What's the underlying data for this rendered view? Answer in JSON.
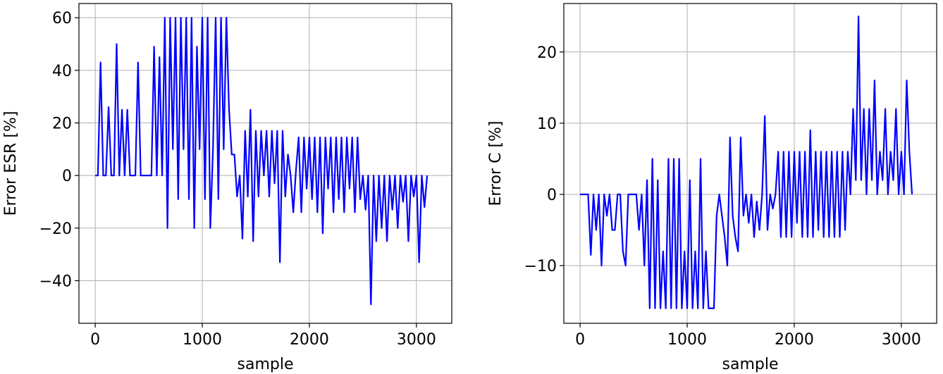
{
  "chart_data": [
    {
      "type": "line",
      "xlabel": "sample",
      "ylabel": "Error ESR [%]",
      "x": [
        0,
        25,
        50,
        75,
        100,
        125,
        150,
        175,
        200,
        225,
        250,
        275,
        300,
        325,
        350,
        375,
        400,
        425,
        450,
        475,
        500,
        525,
        550,
        575,
        600,
        625,
        650,
        675,
        700,
        725,
        750,
        775,
        800,
        825,
        850,
        875,
        900,
        925,
        950,
        975,
        1000,
        1025,
        1050,
        1075,
        1100,
        1125,
        1150,
        1175,
        1200,
        1225,
        1250,
        1275,
        1300,
        1325,
        1350,
        1375,
        1400,
        1425,
        1450,
        1475,
        1500,
        1525,
        1550,
        1575,
        1600,
        1625,
        1650,
        1675,
        1700,
        1725,
        1750,
        1775,
        1800,
        1825,
        1850,
        1875,
        1900,
        1925,
        1950,
        1975,
        2000,
        2025,
        2050,
        2075,
        2100,
        2125,
        2150,
        2175,
        2200,
        2225,
        2250,
        2275,
        2300,
        2325,
        2350,
        2375,
        2400,
        2425,
        2450,
        2475,
        2500,
        2525,
        2550,
        2575,
        2600,
        2625,
        2650,
        2675,
        2700,
        2725,
        2750,
        2775,
        2800,
        2825,
        2850,
        2875,
        2900,
        2925,
        2950,
        2975,
        3000,
        3025,
        3050,
        3075,
        3100
      ],
      "series": [
        {
          "color": "#0000ff",
          "values": [
            0,
            0,
            43,
            0,
            0,
            26,
            0,
            0,
            50,
            0,
            25,
            0,
            25,
            0,
            0,
            0,
            43,
            0,
            0,
            0,
            0,
            0,
            49,
            0,
            45,
            0,
            60,
            -20,
            60,
            10,
            60,
            -9,
            60,
            10,
            60,
            -9,
            60,
            -20,
            49,
            10,
            60,
            -9,
            60,
            -20,
            10,
            60,
            -9,
            60,
            10,
            60,
            25,
            8,
            8,
            -8,
            0,
            -24,
            17,
            -8,
            25,
            -25,
            17,
            -8,
            17,
            0,
            17,
            -8,
            17,
            -3,
            17,
            -33,
            17,
            -8,
            8,
            0,
            -14,
            2,
            14.5,
            -14,
            14.5,
            -5,
            14.5,
            -9,
            14.5,
            -14,
            14.5,
            -22,
            14.5,
            -5,
            14.5,
            -14,
            14.5,
            -9,
            14.5,
            -14,
            14.5,
            -5,
            14.5,
            -14,
            14.5,
            -9,
            0,
            -13,
            0,
            -49,
            0,
            -25,
            0,
            -20,
            0,
            -25,
            0,
            -13,
            0,
            -20,
            0,
            -10,
            0,
            -25,
            0,
            -8,
            0,
            -33,
            0,
            -12,
            0
          ]
        }
      ],
      "xlim": [
        -152,
        3330
      ],
      "ylim": [
        -56.2,
        65.4
      ],
      "xticks": [
        0,
        1000,
        2000,
        3000
      ],
      "yticks": [
        {
          "value": -40,
          "label": "−40"
        },
        {
          "value": -20,
          "label": "−20"
        },
        0,
        20,
        40,
        60
      ],
      "grid": true
    },
    {
      "type": "line",
      "xlabel": "sample",
      "ylabel": "Error C [%]",
      "x": [
        0,
        25,
        50,
        75,
        100,
        125,
        150,
        175,
        200,
        225,
        250,
        275,
        300,
        325,
        350,
        375,
        400,
        425,
        450,
        475,
        500,
        525,
        550,
        575,
        600,
        625,
        650,
        675,
        700,
        725,
        750,
        775,
        800,
        825,
        850,
        875,
        900,
        925,
        950,
        975,
        1000,
        1025,
        1050,
        1075,
        1100,
        1125,
        1150,
        1175,
        1200,
        1225,
        1250,
        1275,
        1300,
        1325,
        1350,
        1375,
        1400,
        1425,
        1450,
        1475,
        1500,
        1525,
        1550,
        1575,
        1600,
        1625,
        1650,
        1675,
        1700,
        1725,
        1750,
        1775,
        1800,
        1825,
        1850,
        1875,
        1900,
        1925,
        1950,
        1975,
        2000,
        2025,
        2050,
        2075,
        2100,
        2125,
        2150,
        2175,
        2200,
        2225,
        2250,
        2275,
        2300,
        2325,
        2350,
        2375,
        2400,
        2425,
        2450,
        2475,
        2500,
        2525,
        2550,
        2575,
        2600,
        2625,
        2650,
        2675,
        2700,
        2725,
        2750,
        2775,
        2800,
        2825,
        2850,
        2875,
        2900,
        2925,
        2950,
        2975,
        3000,
        3025,
        3050,
        3075,
        3100
      ],
      "series": [
        {
          "color": "#0000ff",
          "values": [
            0,
            0,
            0,
            0,
            -8.5,
            0,
            -5,
            0,
            -10,
            0,
            -3,
            0,
            -5,
            -5,
            0,
            0,
            -8,
            -10,
            0,
            0,
            0,
            0,
            -5,
            0,
            -10,
            2,
            -16,
            5,
            -16,
            2,
            -16,
            -8,
            -16,
            5,
            -16,
            5,
            -16,
            5,
            -16,
            -8,
            -16,
            2,
            -16,
            -8,
            -16,
            5,
            -16,
            -8,
            -16,
            -16,
            -16,
            -3,
            0,
            -3,
            -6,
            -10,
            8,
            -3,
            -6,
            -8,
            8,
            -3,
            0,
            -4,
            0,
            -6,
            -1,
            -5,
            0,
            11,
            -5,
            0,
            -2,
            0,
            6,
            -6,
            6,
            -6,
            6,
            -6,
            6,
            -4,
            6,
            -6,
            6,
            -6,
            9,
            -6,
            6,
            -5,
            6,
            -6,
            6,
            -6,
            6,
            -6,
            6,
            -6,
            6,
            -5,
            6,
            0,
            12,
            2,
            25,
            2,
            12,
            0,
            12,
            2,
            16,
            0,
            6,
            2,
            12,
            0,
            6,
            2,
            12,
            0,
            6,
            0,
            16,
            6,
            0
          ]
        }
      ],
      "xlim": [
        -152,
        3330
      ],
      "ylim": [
        -18.1,
        26.8
      ],
      "xticks": [
        0,
        1000,
        2000,
        3000
      ],
      "yticks": [
        {
          "value": -10,
          "label": "−10"
        },
        0,
        10,
        20
      ],
      "grid": true
    }
  ]
}
